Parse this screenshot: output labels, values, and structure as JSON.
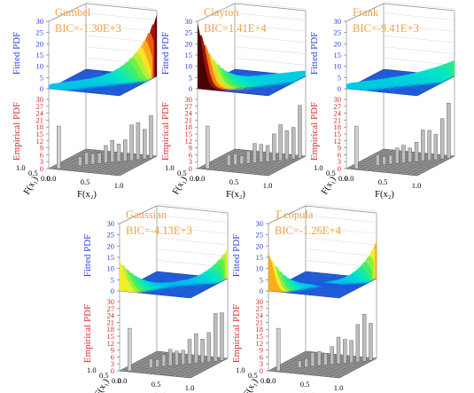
{
  "figure": {
    "fitted_label": "Fitted PDF",
    "empirical_label": "Empirical PDF",
    "x1_label": "F(x₁)",
    "x2_label": "F(x₂)",
    "colors": {
      "fitted_axis": "#2a3fd6",
      "empirical_axis": "#d22a2a",
      "plane": "#1f57d8",
      "bic_text": "#f0a040",
      "bars": "#777777"
    }
  },
  "chart_data": [
    {
      "type": "surface3d",
      "name": "Gumbel",
      "bic": "BIC=-1.30E+3",
      "fitted_zlim": [
        0,
        30
      ],
      "fitted_zticks": [
        "0",
        "5",
        "10",
        "15",
        "20",
        "25",
        "30"
      ],
      "empirical_zlim": [
        0,
        30
      ],
      "empirical_zticks": [
        "0",
        "3",
        "6",
        "9",
        "12",
        "15",
        "18",
        "21",
        "24",
        "27",
        "30"
      ],
      "xticks": [
        "0.0",
        "0.5",
        "1.0"
      ],
      "yticks": [
        "1.0",
        "0.5",
        "0.0"
      ],
      "fitted_peak": 32,
      "empirical_peak": 14
    },
    {
      "type": "surface3d",
      "name": "Clayton",
      "bic": "BIC=1.41E+4",
      "fitted_zlim": [
        0,
        30
      ],
      "fitted_zticks": [
        "0",
        "5",
        "10",
        "15",
        "20",
        "25",
        "30"
      ],
      "empirical_zlim": [
        0,
        30
      ],
      "empirical_zticks": [
        "0",
        "3",
        "6",
        "9",
        "12",
        "15",
        "18",
        "21",
        "24",
        "27",
        "30"
      ],
      "xticks": [
        "0.0",
        "0.5",
        "1.0"
      ],
      "yticks": [
        "1.0",
        "0.5",
        "0.0"
      ],
      "fitted_peak": 30,
      "empirical_peak": 14
    },
    {
      "type": "surface3d",
      "name": "Frank",
      "bic": "BIC=-9.41E+3",
      "fitted_zlim": [
        0,
        30
      ],
      "fitted_zticks": [
        "0",
        "5",
        "10",
        "15",
        "20",
        "25",
        "30"
      ],
      "empirical_zlim": [
        0,
        30
      ],
      "empirical_zticks": [
        "0",
        "3",
        "6",
        "9",
        "12",
        "15",
        "18",
        "21",
        "24",
        "27",
        "30"
      ],
      "xticks": [
        "0.0",
        "0.5",
        "1.0"
      ],
      "yticks": [
        "1.0",
        "0.5",
        "0.0"
      ],
      "fitted_peak": 8,
      "empirical_peak": 14
    },
    {
      "type": "surface3d",
      "name": "Gaussian",
      "bic": "BIC=-4.13E+3",
      "fitted_zlim": [
        0,
        30
      ],
      "fitted_zticks": [
        "0",
        "5",
        "10",
        "15",
        "20",
        "25",
        "30"
      ],
      "empirical_zlim": [
        0,
        30
      ],
      "empirical_zticks": [
        "0",
        "3",
        "6",
        "9",
        "12",
        "15",
        "18",
        "21",
        "24",
        "27",
        "30"
      ],
      "xticks": [
        "0.0",
        "0.5",
        "1.0"
      ],
      "yticks": [
        "1.0",
        "0.5",
        "0.0"
      ],
      "fitted_peak": 16,
      "empirical_peak": 14
    },
    {
      "type": "surface3d",
      "name": "T copula",
      "bic": "BIC=-1.26E+4",
      "fitted_zlim": [
        0,
        30
      ],
      "fitted_zticks": [
        "0",
        "5",
        "10",
        "15",
        "20",
        "25",
        "30"
      ],
      "empirical_zlim": [
        0,
        30
      ],
      "empirical_zticks": [
        "0",
        "3",
        "6",
        "9",
        "12",
        "15",
        "18",
        "21",
        "24",
        "27",
        "30"
      ],
      "xticks": [
        "0.0",
        "0.5",
        "1.0"
      ],
      "yticks": [
        "1.0",
        "0.5",
        "0.0"
      ],
      "fitted_peak": 20,
      "empirical_peak": 14
    }
  ]
}
